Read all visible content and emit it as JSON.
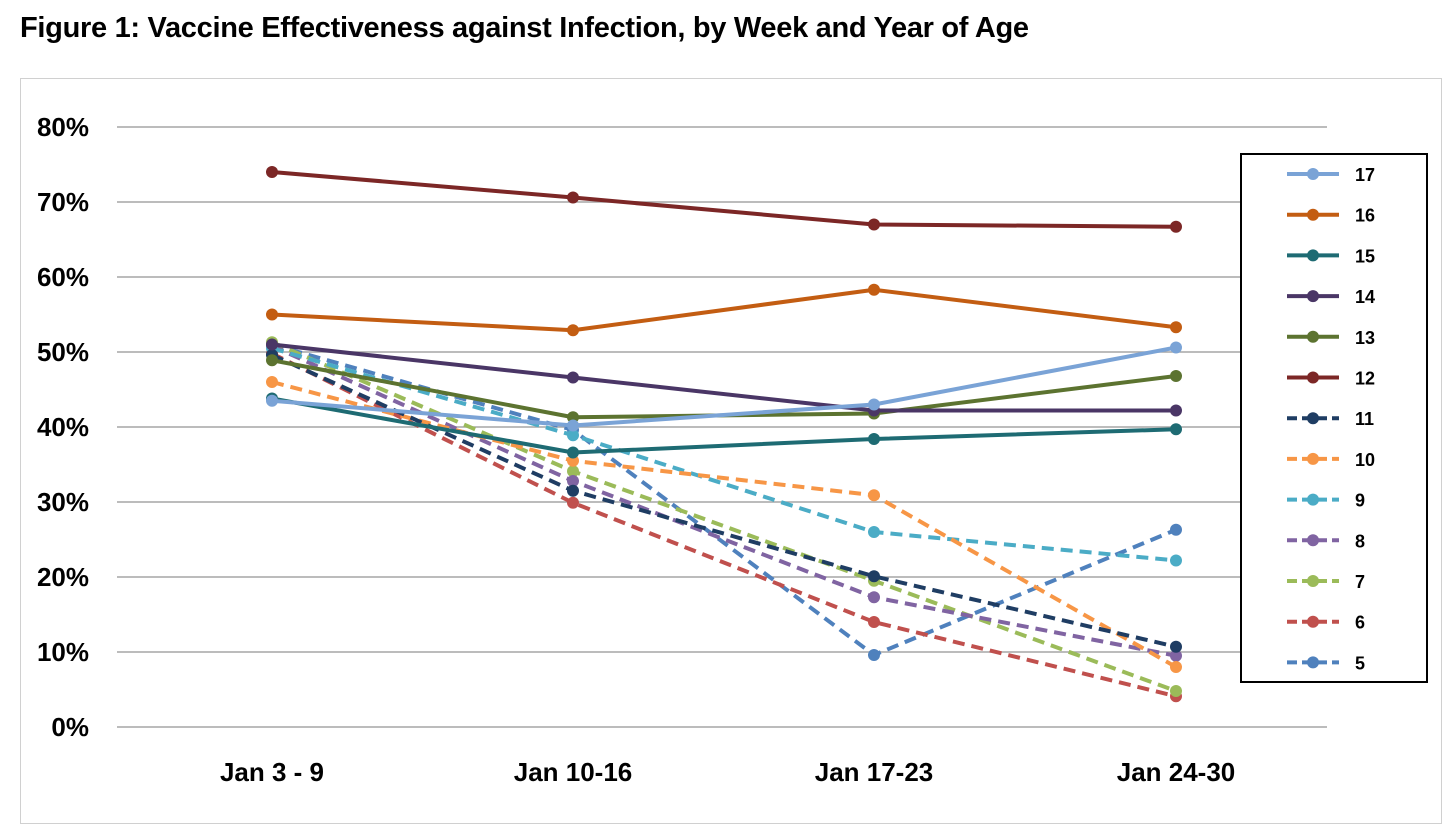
{
  "title": "Figure 1: Vaccine Effectiveness against Infection, by Week and Year of Age",
  "chart_data": {
    "type": "line",
    "title": "Figure 1: Vaccine Effectiveness against Infection, by Week and Year of Age",
    "xlabel": "",
    "ylabel": "",
    "categories": [
      "Jan 3 - 9",
      "Jan 10-16",
      "Jan 17-23",
      "Jan 24-30"
    ],
    "ylim": [
      0,
      80
    ],
    "yticks": [
      0,
      10,
      20,
      30,
      40,
      50,
      60,
      70,
      80
    ],
    "ytick_labels": [
      "0%",
      "10%",
      "20%",
      "30%",
      "40%",
      "50%",
      "60%",
      "70%",
      "80%"
    ],
    "grid": true,
    "legend": "right",
    "series": [
      {
        "name": "17",
        "values": [
          43.5,
          40.2,
          43.0,
          50.6
        ],
        "color": "#7aa3d6",
        "dashed": false
      },
      {
        "name": "16",
        "values": [
          55.0,
          52.9,
          58.3,
          53.3
        ],
        "color": "#c35d12",
        "dashed": false
      },
      {
        "name": "15",
        "values": [
          43.8,
          36.6,
          38.4,
          39.7
        ],
        "color": "#1e6b73",
        "dashed": false
      },
      {
        "name": "14",
        "values": [
          51.0,
          46.6,
          42.2,
          42.2
        ],
        "color": "#4a3666",
        "dashed": false
      },
      {
        "name": "13",
        "values": [
          48.9,
          41.3,
          41.8,
          46.8
        ],
        "color": "#5c7330",
        "dashed": false
      },
      {
        "name": "12",
        "values": [
          74.0,
          70.6,
          67.0,
          66.7
        ],
        "color": "#7c2726",
        "dashed": false
      },
      {
        "name": "11",
        "values": [
          49.6,
          31.5,
          20.1,
          10.7
        ],
        "color": "#1f3d63",
        "dashed": true
      },
      {
        "name": "10",
        "values": [
          46.0,
          35.5,
          30.9,
          8.0
        ],
        "color": "#f79646",
        "dashed": true
      },
      {
        "name": "9",
        "values": [
          50.5,
          38.9,
          26.0,
          22.2
        ],
        "color": "#4bacc6",
        "dashed": true
      },
      {
        "name": "8",
        "values": [
          50.8,
          32.8,
          17.3,
          9.5
        ],
        "color": "#8064a2",
        "dashed": true
      },
      {
        "name": "7",
        "values": [
          51.3,
          34.1,
          19.5,
          4.8
        ],
        "color": "#9bbb59",
        "dashed": true
      },
      {
        "name": "6",
        "values": [
          49.8,
          29.9,
          14.0,
          4.1
        ],
        "color": "#c0504d",
        "dashed": true
      },
      {
        "name": "5",
        "values": [
          51.0,
          39.6,
          9.6,
          26.3
        ],
        "color": "#4f81bd",
        "dashed": true
      }
    ]
  }
}
